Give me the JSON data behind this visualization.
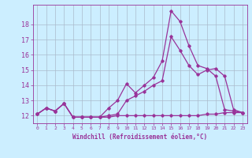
{
  "xlabel": "Windchill (Refroidissement éolien,°C)",
  "bg_color": "#cceeff",
  "line_color": "#993399",
  "grid_color": "#aabbcc",
  "ylim": [
    11.5,
    19.3
  ],
  "xlim": [
    -0.5,
    23.5
  ],
  "yticks": [
    12,
    13,
    14,
    15,
    16,
    17,
    18
  ],
  "xticks": [
    0,
    1,
    2,
    3,
    4,
    5,
    6,
    7,
    8,
    9,
    10,
    11,
    12,
    13,
    14,
    15,
    16,
    17,
    18,
    19,
    20,
    21,
    22,
    23
  ],
  "line1_x": [
    0,
    1,
    2,
    3,
    4,
    5,
    6,
    7,
    8,
    9,
    10,
    11,
    12,
    13,
    14,
    15,
    16,
    17,
    18,
    19,
    20,
    21,
    22,
    23
  ],
  "line1_y": [
    12.1,
    12.5,
    12.3,
    12.8,
    11.9,
    11.9,
    11.9,
    11.9,
    11.9,
    12.0,
    12.0,
    12.0,
    12.0,
    12.0,
    12.0,
    12.0,
    12.0,
    12.0,
    12.0,
    12.1,
    12.1,
    12.2,
    12.2,
    12.2
  ],
  "line2_x": [
    0,
    1,
    2,
    3,
    4,
    5,
    6,
    7,
    8,
    9,
    10,
    11,
    12,
    13,
    14,
    15,
    16,
    17,
    18,
    19,
    20,
    21,
    22,
    23
  ],
  "line2_y": [
    12.1,
    12.5,
    12.3,
    12.8,
    11.9,
    11.9,
    11.9,
    11.9,
    12.5,
    13.0,
    14.1,
    13.5,
    14.0,
    14.5,
    15.6,
    18.9,
    18.2,
    16.6,
    15.3,
    15.1,
    14.6,
    12.4,
    12.3,
    12.2
  ],
  "line3_x": [
    0,
    1,
    2,
    3,
    4,
    5,
    6,
    7,
    8,
    9,
    10,
    11,
    12,
    13,
    14,
    15,
    16,
    17,
    18,
    19,
    20,
    21,
    22,
    23
  ],
  "line3_y": [
    12.1,
    12.5,
    12.3,
    12.8,
    11.9,
    11.9,
    11.9,
    11.9,
    12.0,
    12.1,
    13.0,
    13.3,
    13.6,
    14.0,
    14.3,
    17.2,
    16.3,
    15.3,
    14.7,
    15.0,
    15.1,
    14.6,
    12.4,
    12.2
  ]
}
